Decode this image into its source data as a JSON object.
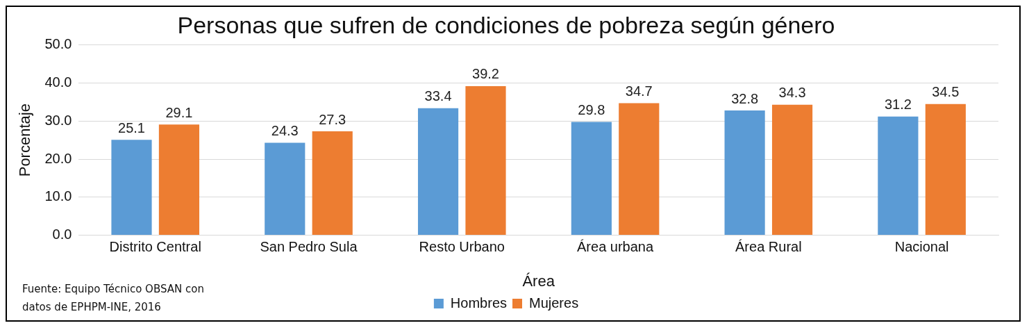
{
  "chart_data": {
    "type": "bar",
    "title": "Personas que sufren de condiciones de pobreza según género",
    "xlabel": "Área",
    "ylabel": "Porcentaje",
    "categories": [
      "Distrito Central",
      "San Pedro Sula",
      "Resto Urbano",
      "Área urbana",
      "Área Rural",
      "Nacional"
    ],
    "series": [
      {
        "name": "Hombres",
        "color": "#5b9bd5",
        "values": [
          25.1,
          24.3,
          33.4,
          29.8,
          32.8,
          31.2
        ]
      },
      {
        "name": "Mujeres",
        "color": "#ed7d31",
        "values": [
          29.1,
          27.3,
          39.2,
          34.7,
          34.3,
          34.5
        ]
      }
    ],
    "ylim": [
      0,
      50
    ],
    "yticks": [
      {
        "value": 0,
        "label": "0.0"
      },
      {
        "value": 10,
        "label": "10.0"
      },
      {
        "value": 20,
        "label": "20.0"
      },
      {
        "value": 30,
        "label": "30.0"
      },
      {
        "value": 40,
        "label": "40.0"
      },
      {
        "value": 50,
        "label": "50.0"
      }
    ],
    "grid": "y",
    "legend": "bottom",
    "data_labels": true,
    "annotations": [
      "Fuente: Equipo Técnico OBSAN con datos de EPHPM-INE, 2016"
    ]
  }
}
